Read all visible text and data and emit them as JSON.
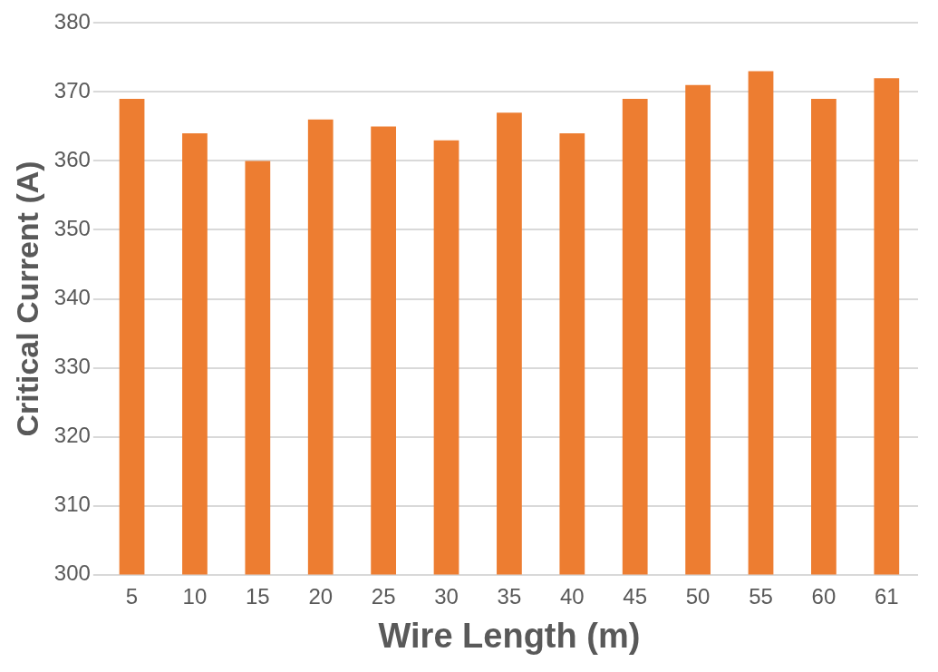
{
  "chart_data": {
    "type": "bar",
    "xlabel": "Wire Length (m)",
    "ylabel": "Critical Current (A)",
    "categories": [
      "5",
      "10",
      "15",
      "20",
      "25",
      "30",
      "35",
      "40",
      "45",
      "50",
      "55",
      "60",
      "61"
    ],
    "values": [
      369,
      364,
      360,
      366,
      365,
      363,
      367,
      364,
      369,
      371,
      373,
      369,
      372
    ],
    "color": "#ed7d31",
    "ylim": [
      300,
      380
    ],
    "yticks": [
      300,
      310,
      320,
      330,
      340,
      350,
      360,
      370,
      380
    ],
    "grid": "y",
    "legend": false
  }
}
